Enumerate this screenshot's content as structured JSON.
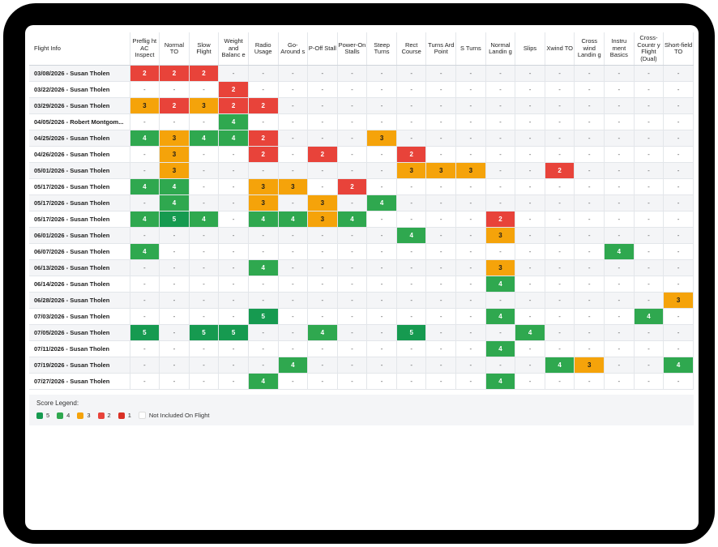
{
  "header_info": "Flight Info",
  "columns": [
    "Preflig ht AC Inspect",
    "Normal TO",
    "Slow Flight",
    "Weight and Balanc e",
    "Radio Usage",
    "Go-Around s",
    "P-Off Stall",
    "Power-On Stalls",
    "Steep Turns",
    "Rect Course",
    "Turns Ard Point",
    "S Turns",
    "Normal Landin g",
    "Slips",
    "Xwind TO",
    "Cross wind Landin g",
    "Instru ment Basics",
    "Cross-Countr y Flight (Dual)",
    "Short-field TO"
  ],
  "rows": [
    {
      "info": "03/08/2026 - Susan Tholen",
      "scores": [
        "2",
        "2",
        "2",
        "-",
        "-",
        "-",
        "-",
        "-",
        "-",
        "-",
        "-",
        "-",
        "-",
        "-",
        "-",
        "-",
        "-",
        "-",
        "-"
      ]
    },
    {
      "info": "03/22/2026 - Susan Tholen",
      "scores": [
        "-",
        "-",
        "-",
        "2",
        "-",
        "-",
        "-",
        "-",
        "-",
        "-",
        "-",
        "-",
        "-",
        "-",
        "-",
        "-",
        "-",
        "-",
        "-"
      ]
    },
    {
      "info": "03/29/2026 - Susan Tholen",
      "scores": [
        "3",
        "2",
        "3",
        "2",
        "2",
        "-",
        "-",
        "-",
        "-",
        "-",
        "-",
        "-",
        "-",
        "-",
        "-",
        "-",
        "-",
        "-",
        "-"
      ]
    },
    {
      "info": "04/05/2026 - Robert Montgom...",
      "scores": [
        "-",
        "-",
        "-",
        "4",
        "-",
        "-",
        "-",
        "-",
        "-",
        "-",
        "-",
        "-",
        "-",
        "-",
        "-",
        "-",
        "-",
        "-",
        "-"
      ]
    },
    {
      "info": "04/25/2026 - Susan Tholen",
      "scores": [
        "4",
        "3",
        "4",
        "4",
        "2",
        "-",
        "-",
        "-",
        "3",
        "-",
        "-",
        "-",
        "-",
        "-",
        "-",
        "-",
        "-",
        "-",
        "-"
      ]
    },
    {
      "info": "04/26/2026 - Susan Tholen",
      "scores": [
        "-",
        "3",
        "-",
        "-",
        "2",
        "-",
        "2",
        "-",
        "-",
        "2",
        "-",
        "-",
        "-",
        "-",
        "-",
        "-",
        "-",
        "-",
        "-"
      ]
    },
    {
      "info": "05/01/2026 - Susan Tholen",
      "scores": [
        "-",
        "3",
        "-",
        "-",
        "-",
        "-",
        "-",
        "-",
        "-",
        "3",
        "3",
        "3",
        "-",
        "-",
        "2",
        "-",
        "-",
        "-",
        "-"
      ]
    },
    {
      "info": "05/17/2026 - Susan Tholen",
      "scores": [
        "4",
        "4",
        "-",
        "-",
        "3",
        "3",
        "-",
        "2",
        "-",
        "-",
        "-",
        "-",
        "-",
        "-",
        "-",
        "-",
        "-",
        "-",
        "-"
      ]
    },
    {
      "info": "05/17/2026 - Susan Tholen",
      "scores": [
        "-",
        "4",
        "-",
        "-",
        "3",
        "-",
        "3",
        "-",
        "4",
        "-",
        "-",
        "-",
        "-",
        "-",
        "-",
        "-",
        "-",
        "-",
        "-"
      ]
    },
    {
      "info": "05/17/2026 - Susan Tholen",
      "scores": [
        "4",
        "5",
        "4",
        "-",
        "4",
        "4",
        "3",
        "4",
        "-",
        "-",
        "-",
        "-",
        "2",
        "-",
        "-",
        "-",
        "-",
        "-",
        "-"
      ]
    },
    {
      "info": "06/01/2026 - Susan Tholen",
      "scores": [
        "-",
        "-",
        "-",
        "-",
        "-",
        "-",
        "-",
        "-",
        "-",
        "4",
        "-",
        "-",
        "3",
        "-",
        "-",
        "-",
        "-",
        "-",
        "-"
      ]
    },
    {
      "info": "06/07/2026 - Susan Tholen",
      "scores": [
        "4",
        "-",
        "-",
        "-",
        "-",
        "-",
        "-",
        "-",
        "-",
        "-",
        "-",
        "-",
        "-",
        "-",
        "-",
        "-",
        "4",
        "-",
        "-"
      ]
    },
    {
      "info": "06/13/2026 - Susan Tholen",
      "scores": [
        "-",
        "-",
        "-",
        "-",
        "4",
        "-",
        "-",
        "-",
        "-",
        "-",
        "-",
        "-",
        "3",
        "-",
        "-",
        "-",
        "-",
        "-",
        "-"
      ]
    },
    {
      "info": "06/14/2026 - Susan Tholen",
      "scores": [
        "-",
        "-",
        "-",
        "-",
        "-",
        "-",
        "-",
        "-",
        "-",
        "-",
        "-",
        "-",
        "4",
        "-",
        "-",
        "-",
        "-",
        "-",
        "-"
      ]
    },
    {
      "info": "06/28/2026 - Susan Tholen",
      "scores": [
        "-",
        "-",
        "-",
        "-",
        "-",
        "-",
        "-",
        "-",
        "-",
        "-",
        "-",
        "-",
        "-",
        "-",
        "-",
        "-",
        "-",
        "-",
        "3"
      ]
    },
    {
      "info": "07/03/2026 - Susan Tholen",
      "scores": [
        "-",
        "-",
        "-",
        "-",
        "5",
        "-",
        "-",
        "-",
        "-",
        "-",
        "-",
        "-",
        "4",
        "-",
        "-",
        "-",
        "-",
        "4",
        "-"
      ]
    },
    {
      "info": "07/05/2026 - Susan Tholen",
      "scores": [
        "5",
        "-",
        "5",
        "5",
        "-",
        "-",
        "4",
        "-",
        "-",
        "5",
        "-",
        "-",
        "-",
        "4",
        "-",
        "-",
        "-",
        "-",
        "-"
      ]
    },
    {
      "info": "07/11/2026 - Susan Tholen",
      "scores": [
        "-",
        "-",
        "-",
        "-",
        "-",
        "-",
        "-",
        "-",
        "-",
        "-",
        "-",
        "-",
        "4",
        "-",
        "-",
        "-",
        "-",
        "-",
        "-"
      ]
    },
    {
      "info": "07/19/2026 - Susan Tholen",
      "scores": [
        "-",
        "-",
        "-",
        "-",
        "-",
        "4",
        "-",
        "-",
        "-",
        "-",
        "-",
        "-",
        "-",
        "-",
        "4",
        "3",
        "-",
        "-",
        "4"
      ]
    },
    {
      "info": "07/27/2026 - Susan Tholen",
      "scores": [
        "-",
        "-",
        "-",
        "-",
        "4",
        "-",
        "-",
        "-",
        "-",
        "-",
        "-",
        "-",
        "4",
        "-",
        "-",
        "-",
        "-",
        "-",
        "-"
      ]
    }
  ],
  "legend": {
    "title": "Score Legend:",
    "items": [
      {
        "label": "5",
        "level": "5"
      },
      {
        "label": "4",
        "level": "4"
      },
      {
        "label": "3",
        "level": "3"
      },
      {
        "label": "2",
        "level": "2"
      },
      {
        "label": "1",
        "level": "1"
      },
      {
        "label": "Not Included On Flight",
        "level": "0"
      }
    ]
  },
  "colors": {
    "score_5": "#169a50",
    "score_4": "#2fa84f",
    "score_3": "#f5a30a",
    "score_2": "#e8433a",
    "score_1": "#d93025"
  }
}
